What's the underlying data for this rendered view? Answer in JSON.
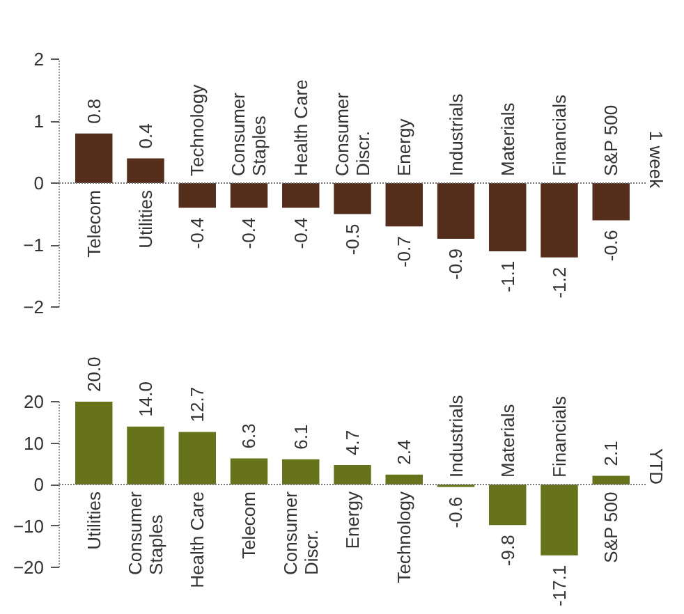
{
  "chart_data": [
    {
      "type": "bar",
      "ylabel": "1 week",
      "categories": [
        "Telecom",
        "Utilities",
        "Technology",
        "Consumer\nStaples",
        "Health Care",
        "Consumer\nDiscr.",
        "Energy",
        "Industrials",
        "Materials",
        "Financials",
        "S&P 500"
      ],
      "values": [
        0.8,
        0.4,
        -0.4,
        -0.4,
        -0.4,
        -0.5,
        -0.7,
        -0.9,
        -1.1,
        -1.2,
        -0.6
      ],
      "color": "#542e1a",
      "ylim": [
        -2,
        2
      ],
      "yticks": [
        -2,
        -1,
        0,
        1,
        2
      ],
      "data_labels": true
    },
    {
      "type": "bar",
      "ylabel": "YTD",
      "categories": [
        "Utilities",
        "Consumer\nStaples",
        "Health Care",
        "Telecom",
        "Consumer\nDiscr.",
        "Energy",
        "Technology",
        "Industrials",
        "Materials",
        "Financials",
        "S&P 500"
      ],
      "values": [
        20.0,
        14.0,
        12.7,
        6.3,
        6.1,
        4.7,
        2.4,
        -0.6,
        -9.8,
        -17.1,
        2.1
      ],
      "color": "#66731b",
      "ylim": [
        -20,
        20
      ],
      "yticks": [
        -20,
        -10,
        0,
        10,
        20
      ],
      "value_labels": [
        "20.0",
        "14.0",
        "12.7",
        "6.3",
        "6.1",
        "4.7",
        "2.4",
        "-0.6",
        "-9.8",
        "-17.1",
        "2.1"
      ]
    }
  ]
}
